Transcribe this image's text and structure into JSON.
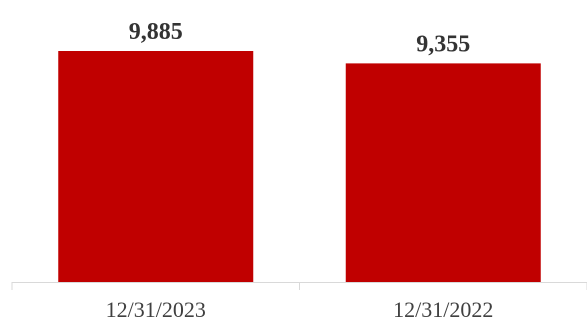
{
  "chart_data": {
    "type": "bar",
    "categories": [
      "12/31/2023",
      "12/31/2022"
    ],
    "values": [
      9885,
      9355
    ],
    "value_labels": [
      "9,885",
      "9,355"
    ],
    "title": "",
    "xlabel": "",
    "ylabel": "",
    "ylim": [
      0,
      9885
    ],
    "grid": false,
    "bar_color": "#C00000",
    "axis_color": "#D9D9D9"
  }
}
